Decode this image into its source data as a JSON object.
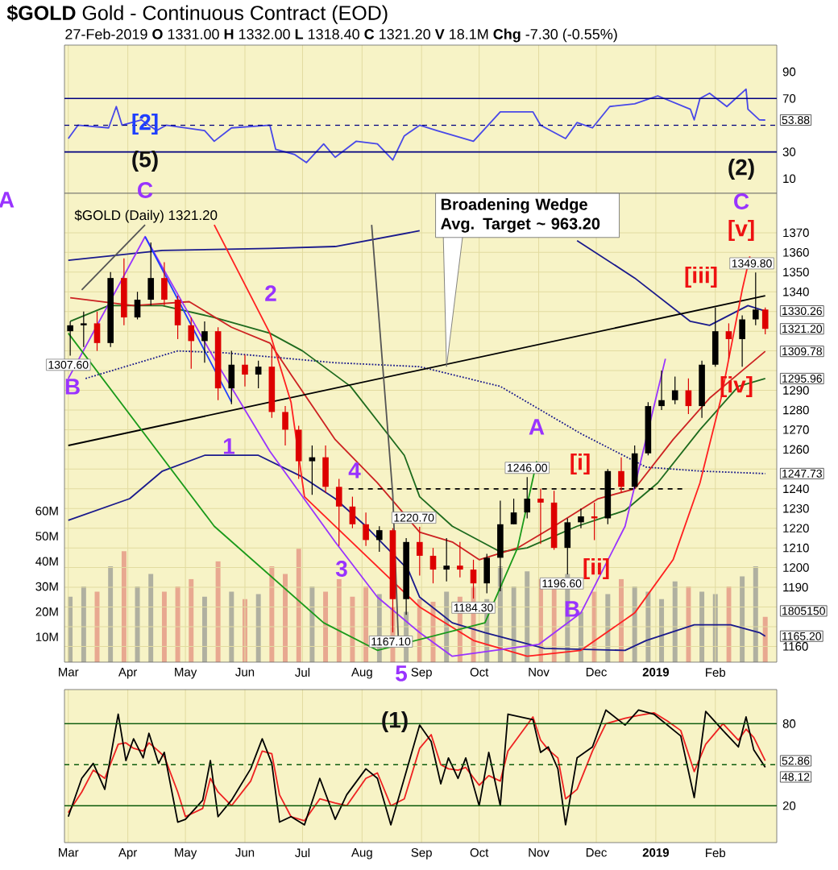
{
  "chart_data": [
    {
      "type": "line",
      "title": "**$GOLD** Gold - Continuous Contract (EOD)",
      "subtitle": "27-Feb-2019 **O** 1331.00 **H** 1332.00 **L** 1318.40 **C** 1321.20 **V** 18.1M **Chg** -7.30 (-0.55%)",
      "x": [
        "2018-03-01",
        "2018-03-06",
        "2018-03-22",
        "2018-03-26",
        "2018-03-29",
        "2018-04-08",
        "2018-04-16",
        "2018-04-21",
        "2018-05-11",
        "2018-05-16",
        "2018-05-25",
        "2018-06-14",
        "2018-06-17",
        "2018-06-27",
        "2018-07-03",
        "2018-07-12",
        "2018-07-18",
        "2018-07-29",
        "2018-08-09",
        "2018-08-17",
        "2018-08-23",
        "2018-08-31",
        "2018-09-09",
        "2018-09-28",
        "2018-10-12",
        "2018-10-29",
        "2018-11-02",
        "2018-11-15",
        "2018-11-21",
        "2018-11-29",
        "2018-12-08",
        "2018-12-21",
        "2019-01-02",
        "2019-01-19",
        "2019-01-21",
        "2019-01-24",
        "2019-01-29",
        "2019-02-07",
        "2019-02-17",
        "2019-02-18",
        "2019-02-24",
        "2019-02-27"
      ],
      "series": [
        {
          "color": "#4848e8",
          "values": [
            40,
            50,
            48,
            64,
            50,
            54,
            46,
            50,
            46,
            38,
            48,
            50,
            32,
            28,
            22,
            36,
            26,
            38,
            36,
            24,
            42,
            50,
            46,
            38,
            60,
            60,
            50,
            40,
            52,
            48,
            64,
            66,
            72,
            62,
            54,
            70,
            74,
            64,
            77,
            62,
            54,
            53.88
          ]
        }
      ],
      "xlim": [
        "2018-02-27",
        "2019-03-05"
      ],
      "ylim": [
        -1,
        110
      ],
      "yticks": [
        10,
        30,
        70,
        90
      ],
      "xticks": [
        {
          "value": "2018-03-01",
          "label": null
        },
        {
          "value": "2018-04-01",
          "label": null
        },
        {
          "value": "2018-05-01",
          "label": null
        },
        {
          "value": "2018-06-01",
          "label": null
        },
        {
          "value": "2018-07-01",
          "label": null
        },
        {
          "value": "2018-08-01",
          "label": null
        },
        {
          "value": "2018-09-01",
          "label": null
        },
        {
          "value": "2018-10-01",
          "label": null
        },
        {
          "value": "2018-11-01",
          "label": null
        },
        {
          "value": "2018-12-01",
          "label": null
        },
        {
          "value": "2019-01-01",
          "label": null
        },
        {
          "value": "2019-02-01",
          "label": null
        }
      ],
      "tick_labels": "y",
      "grid": "x",
      "ref_lines": [
        {
          "axis": "y",
          "value": 70,
          "color": "#000080"
        },
        {
          "axis": "y",
          "value": 30,
          "color": "#000080"
        },
        {
          "axis": "y",
          "value": 50,
          "color": "#000080",
          "line_style": "dashed"
        }
      ],
      "annotations": [
        "[2]",
        "(5)",
        "(2)",
        {
          "text": "53.88",
          "x": "2019-02-27",
          "y": 53.88
        }
      ]
    },
    {
      "type": "candlestick",
      "x": [
        "2018-03-02",
        "2018-03-09",
        "2018-03-16",
        "2018-03-23",
        "2018-03-30",
        "2018-04-06",
        "2018-04-13",
        "2018-04-20",
        "2018-04-27",
        "2018-05-04",
        "2018-05-11",
        "2018-05-18",
        "2018-05-25",
        "2018-06-01",
        "2018-06-08",
        "2018-06-15",
        "2018-06-22",
        "2018-06-29",
        "2018-07-06",
        "2018-07-13",
        "2018-07-20",
        "2018-07-27",
        "2018-08-03",
        "2018-08-10",
        "2018-08-17",
        "2018-08-24",
        "2018-08-31",
        "2018-09-07",
        "2018-09-14",
        "2018-09-21",
        "2018-09-28",
        "2018-10-05",
        "2018-10-12",
        "2018-10-19",
        "2018-10-26",
        "2018-11-02",
        "2018-11-09",
        "2018-11-16",
        "2018-11-23",
        "2018-11-30",
        "2018-12-07",
        "2018-12-14",
        "2018-12-21",
        "2018-12-28",
        "2019-01-04",
        "2019-01-11",
        "2019-01-18",
        "2019-01-25",
        "2019-02-01",
        "2019-02-08",
        "2019-02-15",
        "2019-02-22",
        "2019-02-27"
      ],
      "ohlc": [
        [
          1320,
          1325,
          1307.6,
          1323
        ],
        [
          1323,
          1330,
          1312,
          1324
        ],
        [
          1324,
          1330,
          1310,
          1314
        ],
        [
          1314,
          1350,
          1312,
          1347
        ],
        [
          1347,
          1357,
          1323,
          1327
        ],
        [
          1327,
          1340,
          1326,
          1336
        ],
        [
          1336,
          1365,
          1333,
          1347
        ],
        [
          1347,
          1355,
          1333,
          1336
        ],
        [
          1336,
          1338,
          1316,
          1323
        ],
        [
          1323,
          1327,
          1301,
          1315
        ],
        [
          1315,
          1325,
          1304,
          1320
        ],
        [
          1320,
          1322,
          1285,
          1291
        ],
        [
          1291,
          1310,
          1283,
          1303
        ],
        [
          1303,
          1308,
          1292,
          1298
        ],
        [
          1298,
          1305,
          1291,
          1302
        ],
        [
          1302,
          1313,
          1276,
          1279
        ],
        [
          1279,
          1282,
          1262,
          1270
        ],
        [
          1270,
          1272,
          1245,
          1254
        ],
        [
          1254,
          1262,
          1237,
          1256
        ],
        [
          1256,
          1262,
          1238,
          1241
        ],
        [
          1241,
          1245,
          1211,
          1231
        ],
        [
          1231,
          1236,
          1220,
          1222
        ],
        [
          1222,
          1228,
          1211,
          1214
        ],
        [
          1214,
          1221,
          1208,
          1219
        ],
        [
          1219,
          1220,
          1167.1,
          1184
        ],
        [
          1184,
          1215,
          1176,
          1213
        ],
        [
          1213,
          1220.7,
          1196,
          1206
        ],
        [
          1206,
          1210,
          1192,
          1199
        ],
        [
          1199,
          1215,
          1193,
          1201
        ],
        [
          1201,
          1213,
          1195,
          1199
        ],
        [
          1199,
          1204,
          1184.3,
          1192
        ],
        [
          1192,
          1207,
          1187,
          1205
        ],
        [
          1205,
          1234,
          1188,
          1222
        ],
        [
          1222,
          1235,
          1222,
          1228
        ],
        [
          1228,
          1246,
          1225,
          1235
        ],
        [
          1235,
          1240,
          1212,
          1233
        ],
        [
          1233,
          1239,
          1209,
          1210
        ],
        [
          1210,
          1225,
          1196.6,
          1223
        ],
        [
          1223,
          1230,
          1220,
          1226
        ],
        [
          1226,
          1233,
          1214,
          1225
        ],
        [
          1225,
          1250,
          1222,
          1249
        ],
        [
          1249,
          1256,
          1238,
          1241
        ],
        [
          1241,
          1262,
          1240,
          1258
        ],
        [
          1258,
          1284,
          1257,
          1282
        ],
        [
          1282,
          1300,
          1280,
          1285
        ],
        [
          1285,
          1297,
          1283,
          1290
        ],
        [
          1290,
          1296,
          1278,
          1282
        ],
        [
          1282,
          1305,
          1276,
          1303
        ],
        [
          1303,
          1332,
          1302,
          1320
        ],
        [
          1320,
          1324,
          1306,
          1316
        ],
        [
          1316,
          1328,
          1302,
          1326
        ],
        [
          1326,
          1349.8,
          1323,
          1331
        ],
        [
          1331,
          1332,
          1318.4,
          1321.2
        ]
      ],
      "colors": [
        "#000000",
        "#000000",
        "#dd0000",
        "#000000",
        "#dd0000",
        "#000000",
        "#000000",
        "#dd0000",
        "#dd0000",
        "#dd0000",
        "#000000",
        "#dd0000",
        "#000000",
        "#dd0000",
        "#000000",
        "#dd0000",
        "#dd0000",
        "#dd0000",
        "#000000",
        "#dd0000",
        "#dd0000",
        "#dd0000",
        "#dd0000",
        "#000000",
        "#dd0000",
        "#000000",
        "#dd0000",
        "#dd0000",
        "#000000",
        "#dd0000",
        "#dd0000",
        "#000000",
        "#000000",
        "#000000",
        "#000000",
        "#dd0000",
        "#dd0000",
        "#000000",
        "#000000",
        "#dd0000",
        "#000000",
        "#dd0000",
        "#000000",
        "#000000",
        "#000000",
        "#000000",
        "#dd0000",
        "#000000",
        "#000000",
        "#dd0000",
        "#000000",
        "#000000",
        "#dd0000"
      ],
      "series": [
        {
          "type": "bar",
          "axis": "y2",
          "values": [
            26,
            30,
            28,
            38,
            44,
            30,
            35,
            28,
            30,
            33,
            26,
            40,
            28,
            25,
            27,
            38,
            35,
            45,
            30,
            28,
            33,
            26,
            30,
            27,
            22,
            20,
            25,
            24,
            28,
            26,
            30,
            25,
            38,
            30,
            36,
            33,
            30,
            35,
            20,
            28,
            27,
            33,
            30,
            28,
            25,
            32,
            30,
            28,
            27,
            30,
            34,
            38,
            18
          ],
          "colors": [
            "#b0b0a0",
            "#b0b0a0",
            "#e8a890",
            "#b0b0a0",
            "#e8a890",
            "#b0b0a0",
            "#b0b0a0",
            "#e8a890",
            "#e8a890",
            "#e8a890",
            "#b0b0a0",
            "#e8a890",
            "#b0b0a0",
            "#e8a890",
            "#b0b0a0",
            "#e8a890",
            "#e8a890",
            "#e8a890",
            "#b0b0a0",
            "#e8a890",
            "#e8a890",
            "#e8a890",
            "#e8a890",
            "#b0b0a0",
            "#e8a890",
            "#b0b0a0",
            "#e8a890",
            "#e8a890",
            "#b0b0a0",
            "#e8a890",
            "#e8a890",
            "#b0b0a0",
            "#b0b0a0",
            "#b0b0a0",
            "#b0b0a0",
            "#e8a890",
            "#e8a890",
            "#b0b0a0",
            "#b0b0a0",
            "#e8a890",
            "#b0b0a0",
            "#e8a890",
            "#b0b0a0",
            "#b0b0a0",
            "#b0b0a0",
            "#b0b0a0",
            "#e8a890",
            "#b0b0a0",
            "#b0b0a0",
            "#e8a890",
            "#b0b0a0",
            "#b0b0a0",
            "#e8a890"
          ]
        },
        {
          "type": "line",
          "color": "#1a1a8c",
          "x": [
            "2018-03-01",
            "2018-04-19",
            "2018-06-14",
            "2018-07-18",
            "2018-08-31",
            "2018-09-20",
            "2018-11-21",
            "2018-12-21",
            "2019-01-19",
            "2019-01-29",
            "2019-02-18",
            "2019-02-27"
          ],
          "values": [
            1356,
            1361,
            1362,
            1363,
            1371,
            null,
            1366,
            1347,
            1325,
            1323,
            1333,
            1330.26
          ]
        },
        {
          "type": "line",
          "color": "#1a1a8c",
          "x": [
            "2018-03-01",
            "2018-04-02",
            "2018-04-19",
            "2018-05-11",
            "2018-06-08",
            "2018-07-01",
            "2018-07-18",
            "2018-08-03",
            "2018-08-25",
            "2018-08-31",
            "2018-09-17",
            "2018-10-04",
            "2018-11-04",
            "2018-12-16",
            "2018-12-27",
            "2019-01-21",
            "2019-02-09",
            "2019-02-24",
            "2019-02-27"
          ],
          "values": [
            1224,
            1235,
            1249,
            1257,
            1257,
            1246,
            1235,
            1221,
            1199,
            1185,
            1172,
            1167,
            1159,
            1158,
            1163,
            1171,
            1171,
            1167,
            1165.2
          ]
        },
        {
          "type": "line",
          "color": "#1a1a8c",
          "line_style": "dotted",
          "x": [
            "2018-03-10",
            "2018-04-27",
            "2018-05-22",
            "2018-07-18",
            "2018-08-31",
            "2018-10-12",
            "2018-11-23",
            "2018-12-27",
            "2019-01-24",
            "2019-02-27"
          ],
          "values": [
            1296,
            1310,
            1309,
            1304,
            1302,
            1292,
            1268,
            1251,
            1249,
            1247.73
          ]
        },
        {
          "type": "line",
          "color": "#1e6b1e",
          "x": [
            "2018-03-02",
            "2018-03-22",
            "2018-04-19",
            "2018-05-16",
            "2018-06-14",
            "2018-07-01",
            "2018-07-26",
            "2018-08-23",
            "2018-08-31",
            "2018-09-17",
            "2018-10-12",
            "2018-10-26",
            "2018-11-21",
            "2018-12-16",
            "2019-01-02",
            "2019-01-24",
            "2019-02-13",
            "2019-02-27"
          ],
          "values": [
            1325,
            1333,
            1333,
            1327,
            1319,
            1310,
            1292,
            1257,
            1236,
            1221,
            1208,
            1210,
            1221,
            1229,
            1243,
            1270,
            1292,
            1295.96
          ]
        },
        {
          "type": "line",
          "color": "#cc2222",
          "x": [
            "2018-03-02",
            "2018-04-04",
            "2018-05-03",
            "2018-05-25",
            "2018-06-14",
            "2018-06-25",
            "2018-07-18",
            "2018-08-09",
            "2018-08-31",
            "2018-09-17",
            "2018-10-01",
            "2018-10-21",
            "2018-11-09",
            "2018-12-02",
            "2018-12-21",
            "2019-01-10",
            "2019-01-29",
            "2019-02-15",
            "2019-02-27"
          ],
          "values": [
            1337,
            1333,
            1335,
            1322,
            1314,
            1298,
            1265,
            1243,
            1218,
            1213,
            1204,
            1210,
            1221,
            1235,
            1240,
            1265,
            1286,
            1300,
            1309.78
          ]
        },
        {
          "type": "line",
          "color": "#000000",
          "x": [
            "2018-03-01",
            "2019-02-27"
          ],
          "values": [
            1262,
            1338
          ]
        },
        {
          "type": "line",
          "color": "#000000",
          "line_style": "dashed",
          "x": [
            "2018-07-25",
            "2019-01-16"
          ],
          "values": [
            1240,
            1240
          ]
        },
        {
          "type": "line",
          "color": "#ff2020",
          "x": [
            "2018-05-16",
            "2018-06-14",
            "2018-06-25",
            "2018-07-02",
            "2018-08-31",
            "2018-09-28",
            "2018-10-26",
            "2018-11-23",
            "2018-12-21",
            "2019-01-10",
            "2019-01-24",
            "2019-02-04",
            "2019-02-15",
            "2019-02-19"
          ],
          "values": [
            1374,
            1319,
            1284,
            1236,
            1180,
            1163,
            1155,
            1158,
            1177,
            1204,
            1243,
            1286,
            1341,
            1358
          ]
        },
        {
          "type": "line",
          "color": "#9933ff",
          "x": [
            "2018-03-01",
            "2018-04-10",
            "2018-05-16",
            "2018-06-14",
            "2018-07-18",
            "2018-08-09",
            "2018-08-31",
            "2018-09-17",
            "2018-11-01",
            "2018-11-23",
            "2018-12-16",
            "2019-01-06"
          ],
          "values": [
            1296,
            1368,
            1306,
            1259,
            1213,
            1185,
            1167,
            1155,
            1161,
            1177,
            1221,
            1306
          ]
        },
        {
          "type": "line",
          "color": "#1a9a1a",
          "x": [
            "2018-03-01",
            "2018-05-16",
            "2018-07-12",
            "2018-08-09",
            "2018-10-04",
            "2018-10-21",
            "2018-10-31"
          ],
          "values": [
            1319,
            1221,
            1172,
            1158,
            1172,
            1210,
            1254
          ]
        },
        {
          "type": "line",
          "color": "#555555",
          "x": [
            "2018-03-08",
            "2018-04-10"
          ],
          "values": [
            1341,
            1374
          ]
        },
        {
          "type": "line",
          "color": "#555555",
          "x": [
            "2018-08-06",
            "2018-08-17",
            "2018-08-20"
          ],
          "values": [
            1374,
            1237,
            1161
          ]
        },
        {
          "type": "line",
          "color": "#1f3fff",
          "x": [
            "2018-04-10",
            "2018-05-25"
          ],
          "values": [
            1368,
            1284
          ]
        }
      ],
      "xlim": [
        "2018-02-27",
        "2019-03-05"
      ],
      "ylim": [
        1152,
        1390
      ],
      "yticks": [
        1160,
        {
          "value": 1170,
          "label": null
        },
        {
          "value": 1180,
          "label": null
        },
        1190,
        1200,
        1210,
        1220,
        1230,
        1240,
        {
          "value": 1250,
          "label": null
        },
        1260,
        1270,
        1280,
        1290,
        {
          "value": 1300,
          "label": null
        },
        {
          "value": 1310,
          "label": null
        },
        {
          "value": 1320,
          "label": null
        },
        {
          "value": 1330,
          "label": null
        },
        1340,
        1350,
        1360,
        1370
      ],
      "xticks": [
        {
          "value": "2018-03-01",
          "label": "Mar"
        },
        {
          "value": "2018-04-01",
          "label": "Apr"
        },
        {
          "value": "2018-05-01",
          "label": "May"
        },
        {
          "value": "2018-06-01",
          "label": "Jun"
        },
        {
          "value": "2018-07-01",
          "label": "Jul"
        },
        {
          "value": "2018-08-01",
          "label": "Aug"
        },
        {
          "value": "2018-09-01",
          "label": "Sep"
        },
        {
          "value": "2018-10-01",
          "label": "Oct"
        },
        {
          "value": "2018-11-01",
          "label": "Nov"
        },
        {
          "value": "2018-12-01",
          "label": "Dec"
        },
        {
          "value": "2019-01-01",
          "label": "**2019**"
        },
        {
          "value": "2019-02-01",
          "label": "Feb"
        }
      ],
      "y2lim": [
        0,
        186
      ],
      "y2ticks": [
        {
          "value": 10,
          "label": "10M"
        },
        {
          "value": 20,
          "label": "20M"
        },
        {
          "value": 30,
          "label": "30M"
        },
        {
          "value": 40,
          "label": "40M"
        },
        {
          "value": 50,
          "label": "50M"
        },
        {
          "value": 60,
          "label": "60M"
        }
      ],
      "grid": true,
      "annotations": [
        "$GOLD (Daily) 1321.20",
        "C",
        "A",
        "B",
        "1",
        "2",
        "3",
        "4",
        "5",
        "A",
        "B",
        "[i]",
        "[ii]",
        "[iii]",
        "[iv]",
        "[v]",
        "C",
        {
          "text": "Broadening Wedge Avg. Target ~ 963.20",
          "x": "2018-09-14",
          "y": 1302
        },
        {
          "text": "1307.60",
          "x": "2018-03-01",
          "y": 1307.6
        },
        {
          "text": "1220.70",
          "x": "2018-08-28",
          "y": 1220.7
        },
        {
          "text": "1167.10",
          "x": "2018-08-16",
          "y": 1167.1
        },
        {
          "text": "1184.30",
          "x": "2018-09-28",
          "y": 1184.3
        },
        {
          "text": "1246.00",
          "x": "2018-10-26",
          "y": 1246
        },
        {
          "text": "1196.60",
          "x": "2018-11-13",
          "y": 1196.6
        },
        {
          "text": "1349.80",
          "x": "2019-02-20",
          "y": 1349.8
        },
        {
          "text": "1330.26",
          "x": "2019-02-27",
          "y": 1330.26
        },
        {
          "text": "1321.20",
          "x": "2019-02-27",
          "y": 1321.2
        },
        {
          "text": "1309.78",
          "x": "2019-02-27",
          "y": 1309.78
        },
        {
          "text": "1295.96",
          "x": "2019-02-27",
          "y": 1295.96
        },
        {
          "text": "1247.73",
          "x": "2019-02-27",
          "y": 1247.73
        },
        {
          "text": "1805150",
          "x": "2019-02-27",
          "y": 1178
        },
        {
          "text": "1165.20",
          "x": "2019-02-27",
          "y": 1165.2
        }
      ]
    },
    {
      "type": "line",
      "x": [
        "2018-03-01",
        "2018-03-08",
        "2018-03-14",
        "2018-03-20",
        "2018-03-27",
        "2018-03-31",
        "2018-04-04",
        "2018-04-09",
        "2018-04-12",
        "2018-04-17",
        "2018-04-20",
        "2018-04-27",
        "2018-05-01",
        "2018-05-10",
        "2018-05-14",
        "2018-05-18",
        "2018-05-25",
        "2018-06-04",
        "2018-06-10",
        "2018-06-15",
        "2018-06-19",
        "2018-06-25",
        "2018-07-02",
        "2018-07-10",
        "2018-07-18",
        "2018-07-24",
        "2018-08-03",
        "2018-08-09",
        "2018-08-16",
        "2018-08-23",
        "2018-08-31",
        "2018-09-06",
        "2018-09-11",
        "2018-09-15",
        "2018-09-20",
        "2018-09-24",
        "2018-10-01",
        "2018-10-06",
        "2018-10-12",
        "2018-10-16",
        "2018-10-29",
        "2018-11-02",
        "2018-11-06",
        "2018-11-11",
        "2018-11-15",
        "2018-11-21",
        "2018-11-29",
        "2018-12-06",
        "2018-12-16",
        "2018-12-23",
        "2018-12-31",
        "2019-01-07",
        "2019-01-14",
        "2019-01-21",
        "2019-01-27",
        "2019-02-05",
        "2019-02-13",
        "2019-02-17",
        "2019-02-21",
        "2019-02-27"
      ],
      "series": [
        {
          "color": "#ee2222",
          "values": [
            15,
            30,
            46,
            40,
            65,
            66,
            62,
            60,
            66,
            60,
            56,
            30,
            12,
            18,
            40,
            30,
            20,
            38,
            60,
            58,
            28,
            12,
            9,
            25,
            22,
            20,
            40,
            44,
            20,
            25,
            62,
            72,
            50,
            47,
            46,
            48,
            35,
            42,
            38,
            60,
            85,
            68,
            61,
            55,
            25,
            32,
            60,
            80,
            84,
            86,
            88,
            82,
            75,
            45,
            65,
            80,
            68,
            76,
            70,
            52.86
          ]
        },
        {
          "color": "#000000",
          "values": [
            12,
            40,
            51,
            32,
            87,
            53,
            69,
            55,
            73,
            51,
            59,
            8,
            10,
            24,
            53,
            12,
            24,
            47,
            69,
            51,
            8,
            12,
            6,
            40,
            10,
            28,
            47,
            40,
            6,
            40,
            79,
            67,
            36,
            55,
            40,
            55,
            20,
            59,
            20,
            87,
            83,
            59,
            63,
            47,
            6,
            55,
            63,
            90,
            79,
            90,
            87,
            79,
            71,
            26,
            89,
            75,
            63,
            85,
            61,
            48.12
          ]
        }
      ],
      "xlim": [
        "2018-02-27",
        "2019-03-05"
      ],
      "ylim": [
        -7,
        105
      ],
      "yticks": [
        20,
        80
      ],
      "xticks": [
        {
          "value": "2018-03-01",
          "label": "Mar"
        },
        {
          "value": "2018-04-01",
          "label": "Apr"
        },
        {
          "value": "2018-05-01",
          "label": "May"
        },
        {
          "value": "2018-06-01",
          "label": "Jun"
        },
        {
          "value": "2018-07-01",
          "label": "Jul"
        },
        {
          "value": "2018-08-01",
          "label": "Aug"
        },
        {
          "value": "2018-09-01",
          "label": "Sep"
        },
        {
          "value": "2018-10-01",
          "label": "Oct"
        },
        {
          "value": "2018-11-01",
          "label": "Nov"
        },
        {
          "value": "2018-12-01",
          "label": "Dec"
        },
        {
          "value": "2019-01-01",
          "label": "**2019**"
        },
        {
          "value": "2019-02-01",
          "label": "Feb"
        }
      ],
      "grid": true,
      "ref_lines": [
        {
          "axis": "y",
          "value": 80,
          "color": "#0d5c0d"
        },
        {
          "axis": "y",
          "value": 20,
          "color": "#0d5c0d"
        },
        {
          "axis": "y",
          "value": 50,
          "color": "#0d5c0d",
          "line_style": "dashed"
        }
      ],
      "annotations": [
        "(1)",
        {
          "text": "52.86",
          "x": "2019-02-27",
          "y": 52.86
        },
        {
          "text": "48.12",
          "x": "2019-02-27",
          "y": 48.12
        }
      ]
    }
  ]
}
